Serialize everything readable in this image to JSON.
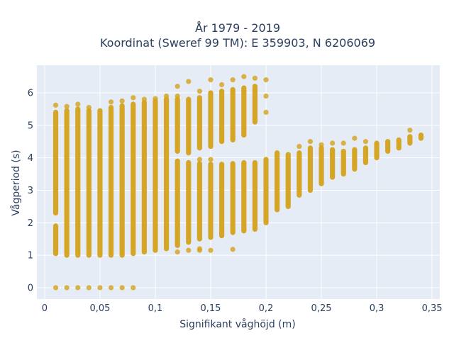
{
  "chart_data": {
    "type": "scatter",
    "title_line1": "År 1979 - 2019",
    "title_line2": "Koordinat (Sweref 99 TM): E 359903, N 6206069",
    "xlabel": "Signifikant våghöjd (m)",
    "ylabel": "Vågperiod (s)",
    "xlim": [
      -0.007,
      0.357
    ],
    "ylim": [
      -0.35,
      6.85
    ],
    "x_ticks": [
      {
        "value": 0,
        "label": "0"
      },
      {
        "value": 0.05,
        "label": "0,05"
      },
      {
        "value": 0.1,
        "label": "0,1"
      },
      {
        "value": 0.15,
        "label": "0,15"
      },
      {
        "value": 0.2,
        "label": "0,2"
      },
      {
        "value": 0.25,
        "label": "0,25"
      },
      {
        "value": 0.3,
        "label": "0,3"
      },
      {
        "value": 0.35,
        "label": "0,35"
      }
    ],
    "y_ticks": [
      {
        "value": 0,
        "label": "0"
      },
      {
        "value": 1,
        "label": "1"
      },
      {
        "value": 2,
        "label": "2"
      },
      {
        "value": 3,
        "label": "3"
      },
      {
        "value": 4,
        "label": "4"
      },
      {
        "value": 5,
        "label": "5"
      },
      {
        "value": 6,
        "label": "6"
      }
    ],
    "grid": true,
    "legend": "none",
    "colors": {
      "marker": "#d4a21a",
      "plot_bg": "#e5ecf6",
      "grid": "#ffffff",
      "text": "#2a3f5f"
    },
    "series": [
      {
        "marker": "circle",
        "columns": [
          {
            "x": 0.01,
            "segments": [
              [
                1.05,
                1.9
              ],
              [
                2.3,
                5.4
              ]
            ],
            "points": [
              0,
              5.62
            ]
          },
          {
            "x": 0.02,
            "segments": [
              [
                1.0,
                5.45
              ]
            ],
            "points": [
              0,
              5.58
            ]
          },
          {
            "x": 0.03,
            "segments": [
              [
                1.0,
                5.5
              ]
            ],
            "points": [
              0,
              5.65
            ]
          },
          {
            "x": 0.04,
            "segments": [
              [
                1.0,
                5.45
              ]
            ],
            "points": [
              0,
              5.55
            ]
          },
          {
            "x": 0.05,
            "segments": [
              [
                1.0,
                5.45
              ]
            ],
            "points": [
              0
            ]
          },
          {
            "x": 0.06,
            "segments": [
              [
                1.0,
                5.55
              ]
            ],
            "points": [
              0,
              5.72
            ]
          },
          {
            "x": 0.07,
            "segments": [
              [
                1.0,
                5.6
              ]
            ],
            "points": [
              0,
              5.75
            ]
          },
          {
            "x": 0.08,
            "segments": [
              [
                1.05,
                5.65
              ]
            ],
            "points": [
              0,
              5.85
            ]
          },
          {
            "x": 0.09,
            "segments": [
              [
                1.1,
                5.7
              ]
            ],
            "points": [
              5.8
            ]
          },
          {
            "x": 0.1,
            "segments": [
              [
                1.15,
                5.75
              ]
            ],
            "points": [
              5.82
            ]
          },
          {
            "x": 0.11,
            "segments": [
              [
                1.2,
                5.8
              ]
            ],
            "points": [
              5.9
            ]
          },
          {
            "x": 0.12,
            "segments": [
              [
                1.3,
                3.9
              ],
              [
                4.2,
                5.8
              ]
            ],
            "points": [
              1.1,
              5.9,
              6.2
            ]
          },
          {
            "x": 0.13,
            "segments": [
              [
                1.4,
                3.85
              ],
              [
                4.15,
                5.8
              ]
            ],
            "points": [
              1.15,
              6.35
            ]
          },
          {
            "x": 0.14,
            "segments": [
              [
                1.5,
                3.82
              ],
              [
                4.3,
                5.85
              ]
            ],
            "points": [
              1.15,
              1.2,
              3.95,
              6.05
            ]
          },
          {
            "x": 0.15,
            "segments": [
              [
                1.55,
                3.8
              ],
              [
                4.35,
                6.0
              ]
            ],
            "points": [
              1.15,
              3.95,
              6.4
            ]
          },
          {
            "x": 0.16,
            "segments": [
              [
                1.6,
                3.8
              ],
              [
                4.5,
                6.05
              ]
            ],
            "points": [
              6.25
            ]
          },
          {
            "x": 0.17,
            "segments": [
              [
                1.7,
                3.82
              ],
              [
                4.55,
                6.1
              ]
            ],
            "points": [
              1.18,
              6.4
            ]
          },
          {
            "x": 0.18,
            "segments": [
              [
                1.75,
                3.85
              ],
              [
                4.7,
                6.15
              ]
            ],
            "points": [
              6.5
            ]
          },
          {
            "x": 0.19,
            "segments": [
              [
                1.8,
                3.85
              ],
              [
                5.1,
                6.2
              ]
            ],
            "points": [
              6.45
            ]
          },
          {
            "x": 0.2,
            "segments": [
              [
                2.0,
                3.95
              ]
            ],
            "points": [
              5.4,
              5.9,
              6.4
            ]
          },
          {
            "x": 0.21,
            "segments": [
              [
                2.4,
                4.15
              ]
            ],
            "points": []
          },
          {
            "x": 0.22,
            "segments": [
              [
                2.5,
                4.1
              ]
            ],
            "points": []
          },
          {
            "x": 0.23,
            "segments": [
              [
                2.85,
                4.15
              ]
            ],
            "points": [
              4.35
            ]
          },
          {
            "x": 0.24,
            "segments": [
              [
                3.0,
                4.3
              ]
            ],
            "points": [
              4.5
            ]
          },
          {
            "x": 0.25,
            "segments": [
              [
                3.2,
                4.3
              ]
            ],
            "points": [
              4.4
            ]
          },
          {
            "x": 0.26,
            "segments": [
              [
                3.4,
                4.25
              ]
            ],
            "points": [
              4.45
            ]
          },
          {
            "x": 0.27,
            "segments": [
              [
                3.5,
                4.2
              ]
            ],
            "points": [
              4.45
            ]
          },
          {
            "x": 0.28,
            "segments": [
              [
                3.65,
                4.25
              ]
            ],
            "points": [
              4.6
            ]
          },
          {
            "x": 0.29,
            "segments": [
              [
                3.85,
                4.3
              ]
            ],
            "points": [
              4.5
            ]
          },
          {
            "x": 0.3,
            "segments": [
              [
                4.0,
                4.45
              ]
            ],
            "points": []
          },
          {
            "x": 0.31,
            "segments": [
              [
                4.2,
                4.5
              ]
            ],
            "points": []
          },
          {
            "x": 0.32,
            "segments": [
              [
                4.3,
                4.55
              ]
            ],
            "points": []
          },
          {
            "x": 0.33,
            "segments": [
              [
                4.45,
                4.65
              ]
            ],
            "points": [
              4.85
            ]
          },
          {
            "x": 0.34,
            "segments": [
              [
                4.6,
                4.7
              ]
            ],
            "points": []
          }
        ]
      }
    ]
  }
}
